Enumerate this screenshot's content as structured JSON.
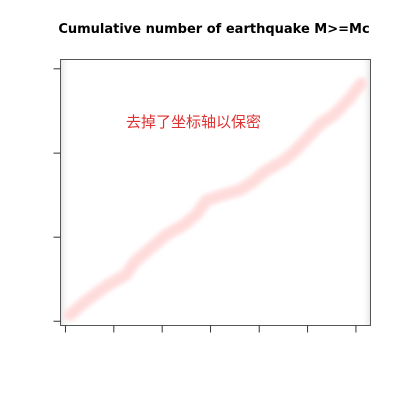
{
  "chart_data": {
    "type": "line",
    "title": "Cumulative number of earthquake M>=Mc",
    "xlabel": "",
    "ylabel": "",
    "x_tick_labels": [],
    "y_tick_labels": [],
    "xlim": [
      0,
      1
    ],
    "ylim": [
      0,
      1
    ],
    "x_ticks": [
      0.016,
      0.172,
      0.328,
      0.484,
      0.641,
      0.797,
      0.953
    ],
    "y_ticks": [
      0.016,
      0.332,
      0.648,
      0.965
    ],
    "grid": false,
    "legend": "none",
    "annotation": "去掉了坐标轴以保密",
    "annotation_color": "#e03030",
    "series_color": "#ffd6d6",
    "series": [
      {
        "x": [
          0.03,
          0.08,
          0.15,
          0.21,
          0.24,
          0.28,
          0.34,
          0.4,
          0.44,
          0.47,
          0.52,
          0.58,
          0.62,
          0.66,
          0.72,
          0.76,
          0.8,
          0.84,
          0.88,
          0.93,
          0.97
        ],
        "y": [
          0.04,
          0.09,
          0.15,
          0.19,
          0.24,
          0.28,
          0.34,
          0.38,
          0.42,
          0.47,
          0.49,
          0.51,
          0.54,
          0.58,
          0.62,
          0.66,
          0.71,
          0.76,
          0.79,
          0.85,
          0.91
        ]
      }
    ]
  }
}
